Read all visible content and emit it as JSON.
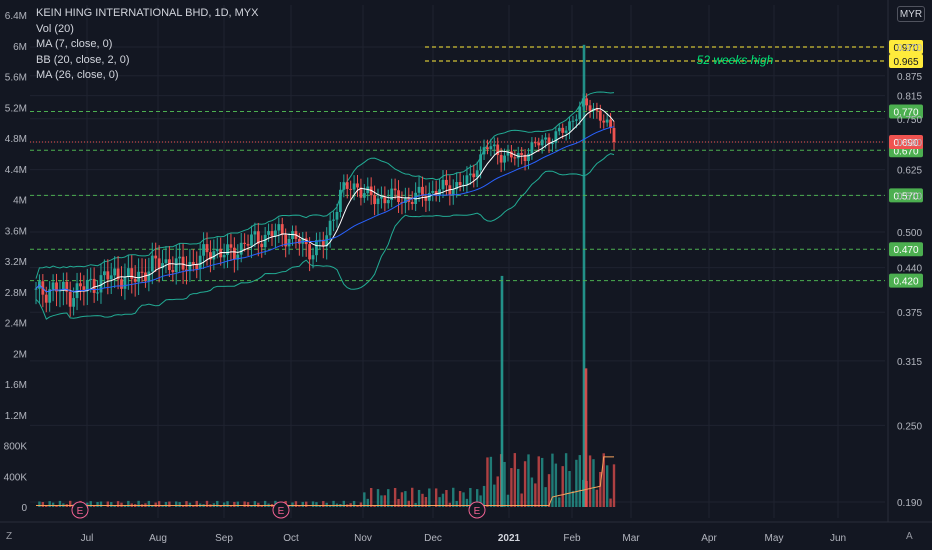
{
  "legend": {
    "title": "KEIN HING INTERNATIONAL BHD, 1D, MYX",
    "indicators": [
      "Vol (20)",
      "MA (7, close, 0)",
      "BB (20, close, 2, 0)",
      "MA (26, close, 0)"
    ]
  },
  "currency": "MYR",
  "annotation": "52 weeks high",
  "corner": {
    "left": "Z",
    "right": "A"
  },
  "colors": {
    "background": "#131722",
    "grid": "#1f2330",
    "up": "#26a69a",
    "down": "#ef5350",
    "bollinger": "#22ab94",
    "ma7": "#ffffff",
    "ma26": "#2962ff",
    "volume_ma": "#f7a35c",
    "support_lines": "#4caf50",
    "high_line": "#ffeb3b",
    "last_price": "#ef5350"
  },
  "chart_data": {
    "type": "candlestick",
    "price_axis": {
      "ticks": [
        "0.970",
        "0.875",
        "0.815",
        "0.750",
        "0.690",
        "0.625",
        "0.570",
        "0.500",
        "0.440",
        "0.375",
        "0.315",
        "0.250",
        "0.190"
      ],
      "scale": "log"
    },
    "volume_axis": {
      "ticks": [
        "6.4M",
        "6M",
        "5.6M",
        "5.2M",
        "4.8M",
        "4.4M",
        "4M",
        "3.6M",
        "3.2M",
        "2.8M",
        "2.4M",
        "2M",
        "1.6M",
        "1.2M",
        "800K",
        "400K",
        "0"
      ]
    },
    "x_axis": {
      "ticks": [
        "Jul",
        "Aug",
        "Sep",
        "Oct",
        "Nov",
        "Dec",
        "2021",
        "Feb",
        "Mar",
        "Apr",
        "May",
        "Jun"
      ]
    },
    "horizontal_levels": [
      {
        "label": "0.970",
        "price": 0.97,
        "style": "dashed",
        "color": "#ffeb3b"
      },
      {
        "label": "0.965",
        "price": 0.965,
        "style": "dashed",
        "color": "#ffeb3b"
      },
      {
        "label": "0.770",
        "price": 0.77,
        "style": "dashed",
        "color": "#4caf50"
      },
      {
        "label": "0.670",
        "price": 0.67,
        "style": "dashed",
        "color": "#4caf50"
      },
      {
        "label": "0.570",
        "price": 0.57,
        "style": "dashed",
        "color": "#4caf50"
      },
      {
        "label": "0.470",
        "price": 0.47,
        "style": "dashed",
        "color": "#4caf50"
      },
      {
        "label": "0.420",
        "price": 0.42,
        "style": "dashed",
        "color": "#4caf50"
      }
    ],
    "last_price": {
      "label": "0.690",
      "price": 0.69
    },
    "earnings_markers": [
      "E",
      "E",
      "E"
    ],
    "price_path_weekly": [
      0.4,
      0.41,
      0.4,
      0.41,
      0.42,
      0.43,
      0.42,
      0.44,
      0.45,
      0.44,
      0.45,
      0.47,
      0.46,
      0.48,
      0.49,
      0.5,
      0.49,
      0.47,
      0.48,
      0.58,
      0.59,
      0.56,
      0.57,
      0.56,
      0.57,
      0.58,
      0.59,
      0.6,
      0.68,
      0.66,
      0.65,
      0.68,
      0.7,
      0.72,
      0.79,
      0.77,
      0.7
    ],
    "volume_spikes_M": [
      6.0,
      3.0,
      2.5
    ]
  }
}
